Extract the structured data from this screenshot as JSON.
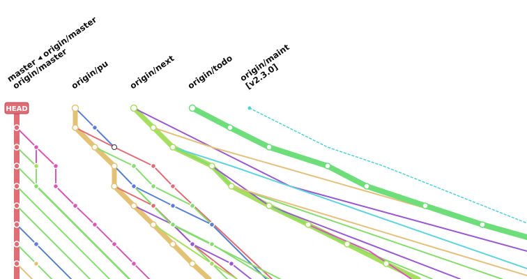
{
  "refs": [
    {
      "id": "master",
      "lines": [
        "master ◂ origin/master",
        "origin/master"
      ]
    },
    {
      "id": "origin-pu",
      "lines": [
        "origin/pu"
      ]
    },
    {
      "id": "origin-next",
      "lines": [
        "origin/next"
      ]
    },
    {
      "id": "origin-todo",
      "lines": [
        "origin/todo"
      ]
    },
    {
      "id": "origin-maint",
      "lines": [
        "origin/maint",
        "[v2.3.0]"
      ]
    }
  ],
  "head_badge": "HEAD",
  "colors": {
    "red": "#e06c75",
    "pink": "#d957b8",
    "green": "#86dc6f",
    "blue": "#5b7fd6",
    "purple": "#9b59d0",
    "cyan": "#5fd3de",
    "orange": "#e5c07b",
    "gold": "#e3c275",
    "lime": "#a6de5f",
    "teal": "#50d0d8",
    "bright_green": "#6ede7a"
  }
}
